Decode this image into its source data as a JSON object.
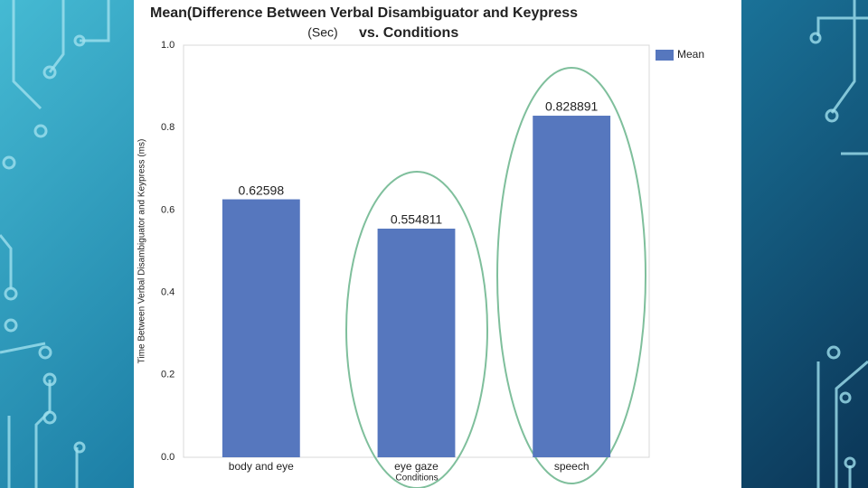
{
  "chart_data": {
    "type": "bar",
    "title": "Mean(Difference Between Verbal Disambiguator and Keypress",
    "annotation": "(Sec)",
    "subtitle": "vs. Conditions",
    "y_label": "Time Between Verbal Disambiguator and Keypress (ms)",
    "x_label": "Conditions",
    "categories": [
      "body and eye",
      "eye gaze",
      "speech"
    ],
    "series": [
      {
        "name": "Mean",
        "color": "#5677be",
        "values": [
          0.62598,
          0.554811,
          0.828891
        ]
      }
    ],
    "ylim": [
      0,
      1
    ],
    "yticks": [
      {
        "value": 0,
        "label": "0.0"
      },
      0.2,
      0.4,
      0.6,
      0.8,
      {
        "value": 1,
        "label": "1.0"
      }
    ],
    "grid": false,
    "legend": "top-right"
  }
}
